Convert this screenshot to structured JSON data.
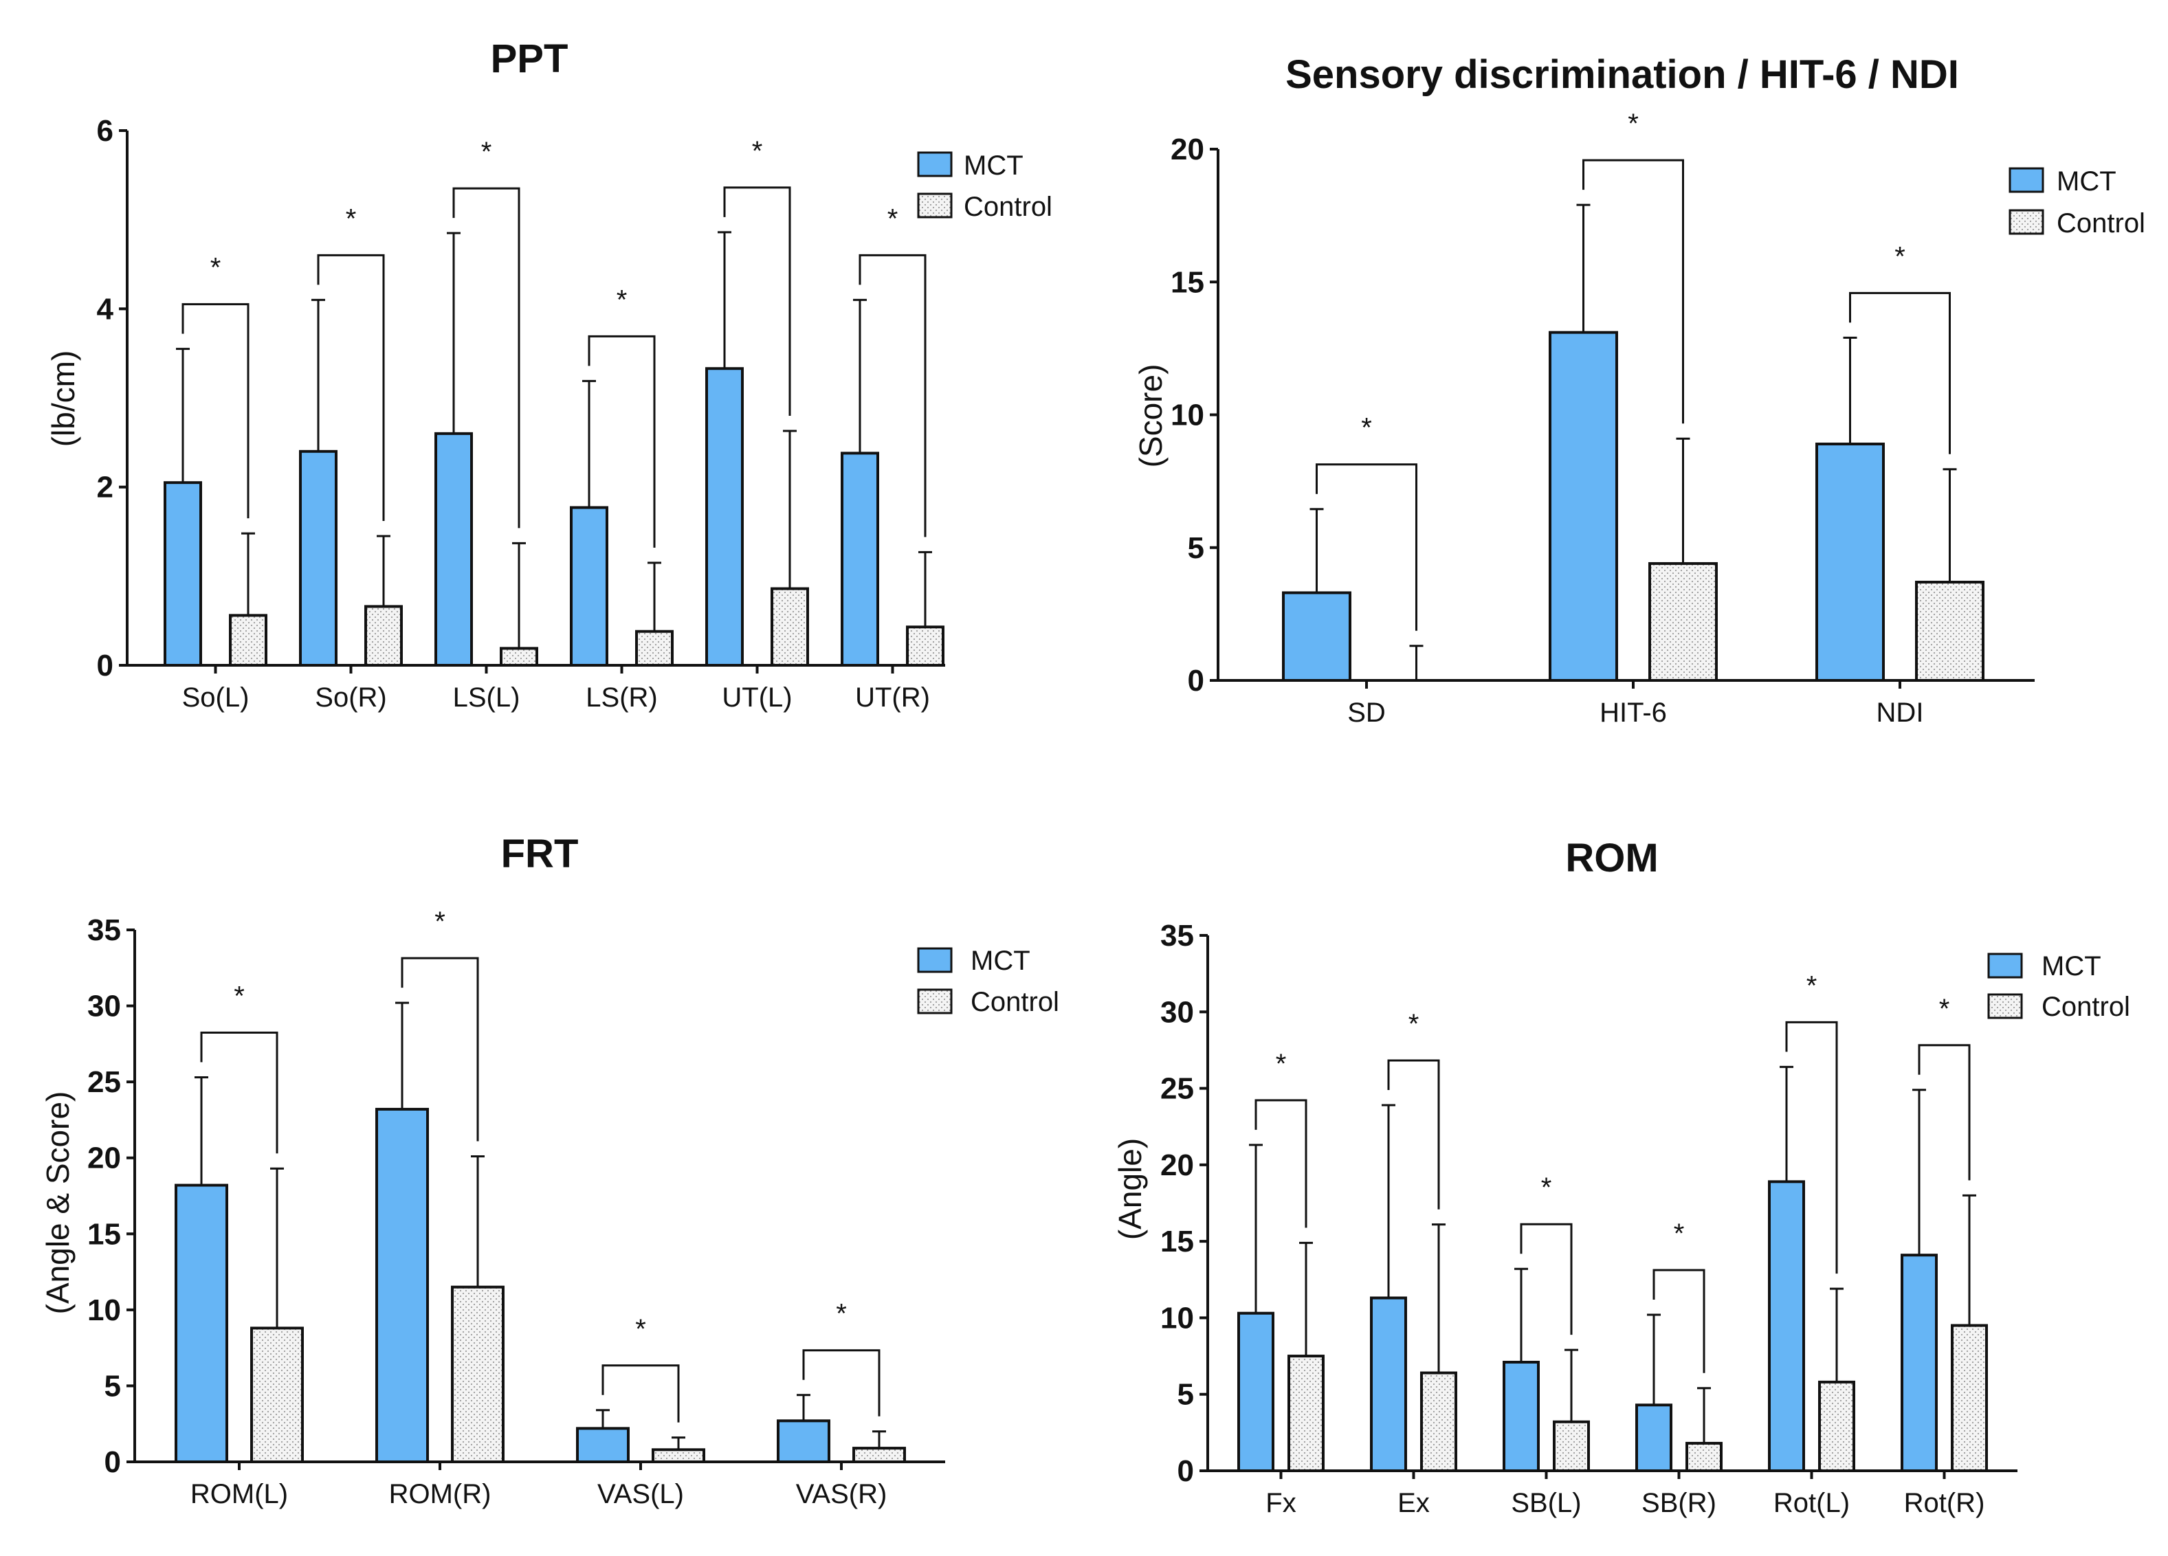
{
  "colors": {
    "mct": "#66b5f5",
    "control": "#f2f2f2",
    "stroke": "#111111"
  },
  "chart_data": [
    {
      "type": "bar",
      "title": "PPT",
      "ylabel": "(lb/cm)",
      "xlabel": "",
      "ylim": [
        0,
        6
      ],
      "yticks": [
        0,
        2,
        4,
        6
      ],
      "categories": [
        "So(L)",
        "So(R)",
        "LS(L)",
        "LS(R)",
        "UT(L)",
        "UT(R)"
      ],
      "series": [
        {
          "name": "MCT",
          "values": [
            2.05,
            2.4,
            2.6,
            1.77,
            3.33,
            2.38
          ],
          "errors": [
            1.5,
            1.7,
            2.25,
            1.42,
            1.53,
            1.72
          ]
        },
        {
          "name": "Control",
          "values": [
            0.56,
            0.66,
            0.19,
            0.38,
            0.86,
            0.43
          ],
          "errors": [
            0.92,
            0.79,
            1.18,
            0.77,
            1.77,
            0.84
          ]
        }
      ],
      "significance": [
        "*",
        "*",
        "*",
        "*",
        "*",
        "*"
      ],
      "legend": "top-right"
    },
    {
      "type": "bar",
      "title": "Sensory discrimination / HIT-6 / NDI",
      "ylabel": "(Score)",
      "xlabel": "",
      "ylim": [
        0,
        20
      ],
      "yticks": [
        0,
        5,
        10,
        15,
        20
      ],
      "categories": [
        "SD",
        "HIT-6",
        "NDI"
      ],
      "series": [
        {
          "name": "MCT",
          "values": [
            3.3,
            13.1,
            8.9
          ],
          "errors": [
            3.15,
            4.8,
            4.0
          ]
        },
        {
          "name": "Control",
          "values": [
            0,
            4.4,
            3.7
          ],
          "errors": [
            1.3,
            4.7,
            4.25
          ]
        }
      ],
      "significance": [
        "*",
        "*",
        "*"
      ],
      "legend": "top-right"
    },
    {
      "type": "bar",
      "title": "FRT",
      "ylabel": "(Angle & Score)",
      "xlabel": "",
      "ylim": [
        0,
        35
      ],
      "yticks": [
        0,
        5,
        10,
        15,
        20,
        25,
        30,
        35
      ],
      "categories": [
        "ROM(L)",
        "ROM(R)",
        "VAS(L)",
        "VAS(R)"
      ],
      "series": [
        {
          "name": "MCT",
          "values": [
            18.2,
            23.2,
            2.2,
            2.7
          ],
          "errors": [
            7.1,
            7.0,
            1.2,
            1.7
          ]
        },
        {
          "name": "Control",
          "values": [
            8.8,
            11.5,
            0.8,
            0.9
          ],
          "errors": [
            10.5,
            8.6,
            0.8,
            1.1
          ]
        }
      ],
      "significance": [
        "*",
        "*",
        "*",
        "*"
      ],
      "legend": "top-right"
    },
    {
      "type": "bar",
      "title": "ROM",
      "ylabel": "(Angle)",
      "xlabel": "",
      "ylim": [
        0,
        35
      ],
      "yticks": [
        0,
        5,
        10,
        15,
        20,
        25,
        30,
        35
      ],
      "categories": [
        "Fx",
        "Ex",
        "SB(L)",
        "SB(R)",
        "Rot(L)",
        "Rot(R)"
      ],
      "series": [
        {
          "name": "MCT",
          "values": [
            10.3,
            11.3,
            7.1,
            4.3,
            18.9,
            14.1
          ],
          "errors": [
            11.0,
            12.6,
            6.1,
            5.9,
            7.5,
            10.8
          ]
        },
        {
          "name": "Control",
          "values": [
            7.5,
            6.4,
            3.2,
            1.8,
            5.8,
            9.5
          ],
          "errors": [
            7.4,
            9.7,
            4.7,
            3.6,
            6.1,
            8.5
          ]
        }
      ],
      "significance": [
        "*",
        "*",
        "*",
        "*",
        "*",
        "*"
      ],
      "legend": "top-right"
    }
  ]
}
